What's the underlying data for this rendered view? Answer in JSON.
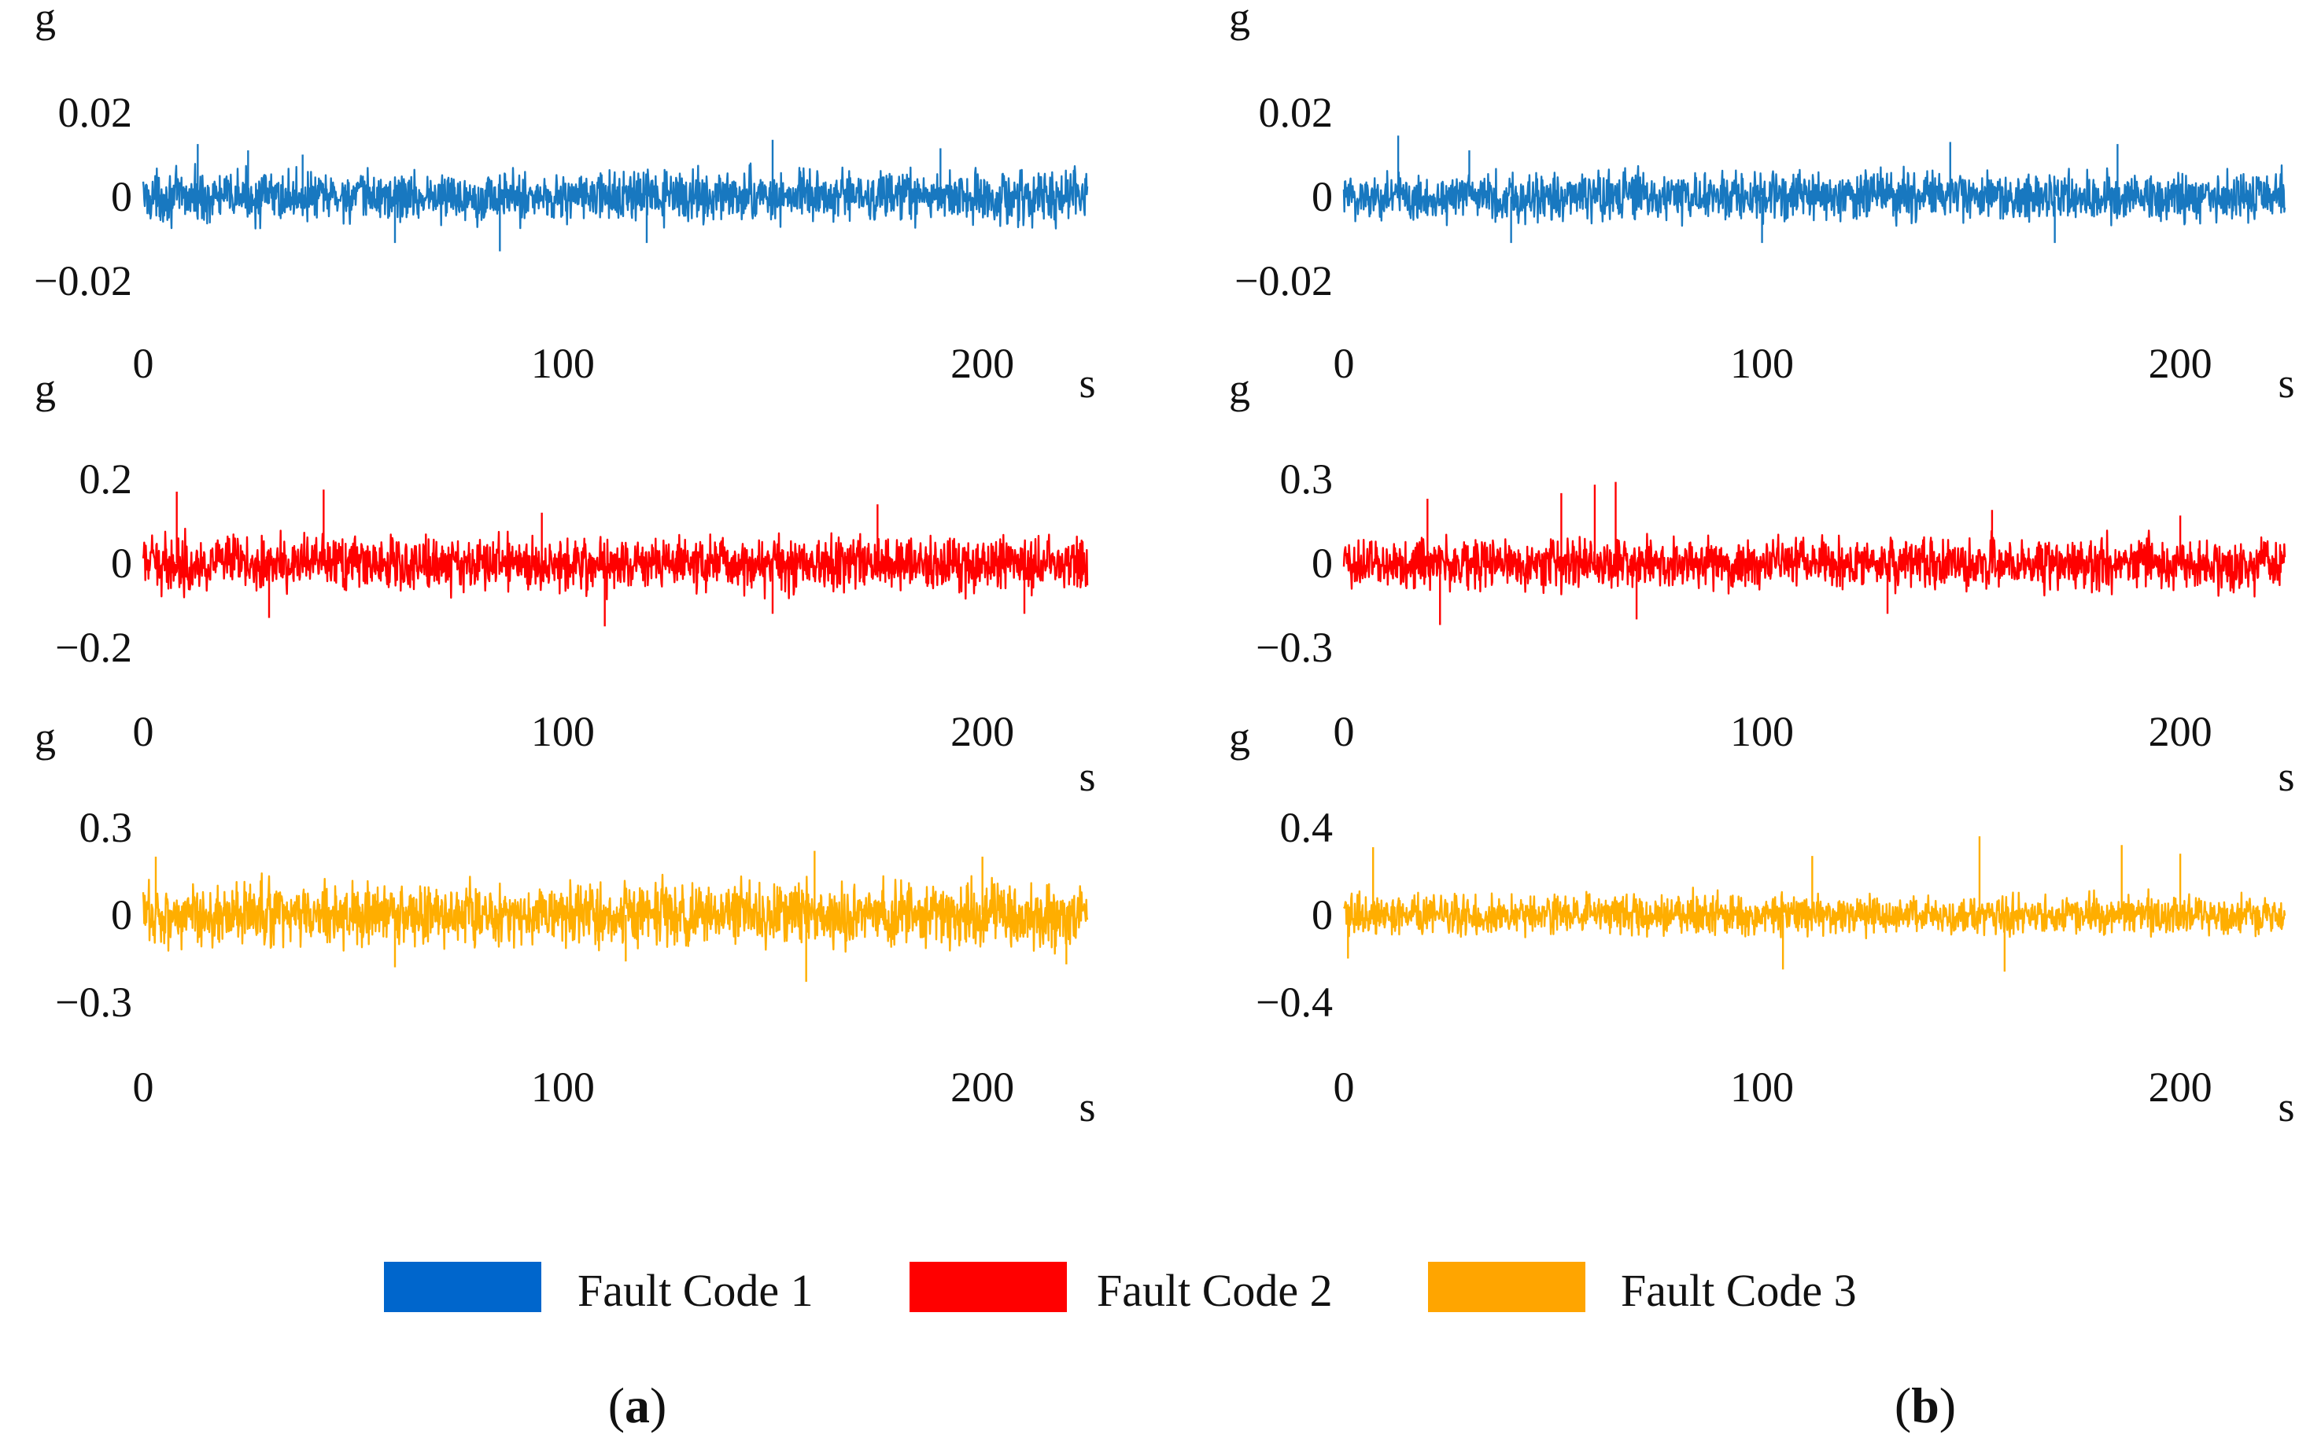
{
  "figure": {
    "panel_labels": [
      {
        "open": "(",
        "letter": "a",
        "close": ")"
      },
      {
        "open": "(",
        "letter": "b",
        "close": ")"
      }
    ]
  },
  "legend": [
    {
      "label": "Fault Code 1",
      "color": "#0066cc"
    },
    {
      "label": "Fault Code 2",
      "color": "#ff0000"
    },
    {
      "label": "Fault Code 3",
      "color": "#ffa500"
    }
  ],
  "chart_data": [
    {
      "type": "line",
      "panel": "a",
      "series": "Fault Code 1",
      "color": "#1878c0",
      "ylabel": "g",
      "xlabel": "s",
      "xlim": [
        0,
        225
      ],
      "ylim": [
        -0.02,
        0.02
      ],
      "yticks": [
        0.02,
        0,
        -0.02
      ],
      "ytick_labels": [
        "0.02",
        "0",
        "−0.02"
      ],
      "xticks": [
        0,
        100,
        200
      ],
      "xtick_labels": [
        "0",
        "100",
        "200"
      ],
      "amplitude": 0.0065,
      "spikes": [
        {
          "x": 13,
          "y": 0.0125
        },
        {
          "x": 25,
          "y": 0.011
        },
        {
          "x": 38,
          "y": 0.01
        },
        {
          "x": 150,
          "y": 0.0135
        },
        {
          "x": 190,
          "y": 0.0115
        },
        {
          "x": 60,
          "y": -0.011
        },
        {
          "x": 85,
          "y": -0.013
        },
        {
          "x": 120,
          "y": -0.011
        }
      ]
    },
    {
      "type": "line",
      "panel": "a",
      "series": "Fault Code 2",
      "color": "#ff0000",
      "ylabel": "g",
      "xlabel": "s",
      "xlim": [
        0,
        225
      ],
      "ylim": [
        -0.2,
        0.2
      ],
      "yticks": [
        0.2,
        0,
        -0.2
      ],
      "ytick_labels": [
        "0.2",
        "0",
        "−0.2"
      ],
      "xticks": [
        0,
        100,
        200
      ],
      "xtick_labels": [
        "0",
        "100",
        "200"
      ],
      "amplitude": 0.07,
      "spikes": [
        {
          "x": 8,
          "y": 0.17
        },
        {
          "x": 43,
          "y": 0.175
        },
        {
          "x": 175,
          "y": 0.14
        },
        {
          "x": 95,
          "y": 0.12
        },
        {
          "x": 30,
          "y": -0.13
        },
        {
          "x": 110,
          "y": -0.15
        },
        {
          "x": 150,
          "y": -0.12
        },
        {
          "x": 210,
          "y": -0.12
        }
      ]
    },
    {
      "type": "line",
      "panel": "a",
      "series": "Fault Code 3",
      "color": "#ffae00",
      "ylabel": "g",
      "xlabel": "s",
      "xlim": [
        0,
        225
      ],
      "ylim": [
        -0.3,
        0.3
      ],
      "yticks": [
        0.3,
        0,
        -0.3
      ],
      "ytick_labels": [
        "0.3",
        "0",
        "−0.3"
      ],
      "xticks": [
        0,
        100,
        200
      ],
      "xtick_labels": [
        "0",
        "100",
        "200"
      ],
      "amplitude": 0.12,
      "spikes": [
        {
          "x": 3,
          "y": 0.2
        },
        {
          "x": 160,
          "y": 0.22
        },
        {
          "x": 200,
          "y": 0.2
        },
        {
          "x": 158,
          "y": -0.23
        },
        {
          "x": 60,
          "y": -0.18
        },
        {
          "x": 115,
          "y": -0.16
        },
        {
          "x": 220,
          "y": -0.17
        }
      ]
    },
    {
      "type": "line",
      "panel": "b",
      "series": "Fault Code 1",
      "color": "#1878c0",
      "ylabel": "g",
      "xlabel": "s",
      "xlim": [
        0,
        225
      ],
      "ylim": [
        -0.02,
        0.02
      ],
      "yticks": [
        0.02,
        0,
        -0.02
      ],
      "ytick_labels": [
        "0.02",
        "0",
        "−0.02"
      ],
      "xticks": [
        0,
        100,
        200
      ],
      "xtick_labels": [
        "0",
        "100",
        "200"
      ],
      "amplitude": 0.0065,
      "spikes": [
        {
          "x": 13,
          "y": 0.0145
        },
        {
          "x": 30,
          "y": 0.011
        },
        {
          "x": 145,
          "y": 0.013
        },
        {
          "x": 185,
          "y": 0.0125
        },
        {
          "x": 40,
          "y": -0.011
        },
        {
          "x": 100,
          "y": -0.011
        },
        {
          "x": 170,
          "y": -0.011
        }
      ]
    },
    {
      "type": "line",
      "panel": "b",
      "series": "Fault Code 2",
      "color": "#ff0000",
      "ylabel": "g",
      "xlabel": "s",
      "xlim": [
        0,
        225
      ],
      "ylim": [
        -0.3,
        0.3
      ],
      "yticks": [
        0.3,
        0,
        -0.3
      ],
      "ytick_labels": [
        "0.3",
        "0",
        "−0.3"
      ],
      "xticks": [
        0,
        100,
        200
      ],
      "xtick_labels": [
        "0",
        "100",
        "200"
      ],
      "amplitude": 0.1,
      "spikes": [
        {
          "x": 20,
          "y": 0.23
        },
        {
          "x": 52,
          "y": 0.25
        },
        {
          "x": 60,
          "y": 0.28
        },
        {
          "x": 65,
          "y": 0.29
        },
        {
          "x": 155,
          "y": 0.19
        },
        {
          "x": 200,
          "y": 0.17
        },
        {
          "x": 23,
          "y": -0.22
        },
        {
          "x": 70,
          "y": -0.2
        },
        {
          "x": 130,
          "y": -0.18
        }
      ]
    },
    {
      "type": "line",
      "panel": "b",
      "series": "Fault Code 3",
      "color": "#ffae00",
      "ylabel": "g",
      "xlabel": "s",
      "xlim": [
        0,
        225
      ],
      "ylim": [
        -0.4,
        0.4
      ],
      "yticks": [
        0.4,
        0,
        -0.4
      ],
      "ytick_labels": [
        "0.4",
        "0",
        "−0.4"
      ],
      "xticks": [
        0,
        100,
        200
      ],
      "xtick_labels": [
        "0",
        "100",
        "200"
      ],
      "amplitude": 0.1,
      "spikes": [
        {
          "x": 7,
          "y": 0.31
        },
        {
          "x": 112,
          "y": 0.27
        },
        {
          "x": 152,
          "y": 0.36
        },
        {
          "x": 186,
          "y": 0.32
        },
        {
          "x": 200,
          "y": 0.28
        },
        {
          "x": 105,
          "y": -0.25
        },
        {
          "x": 158,
          "y": -0.26
        },
        {
          "x": 1,
          "y": -0.2
        }
      ]
    }
  ]
}
